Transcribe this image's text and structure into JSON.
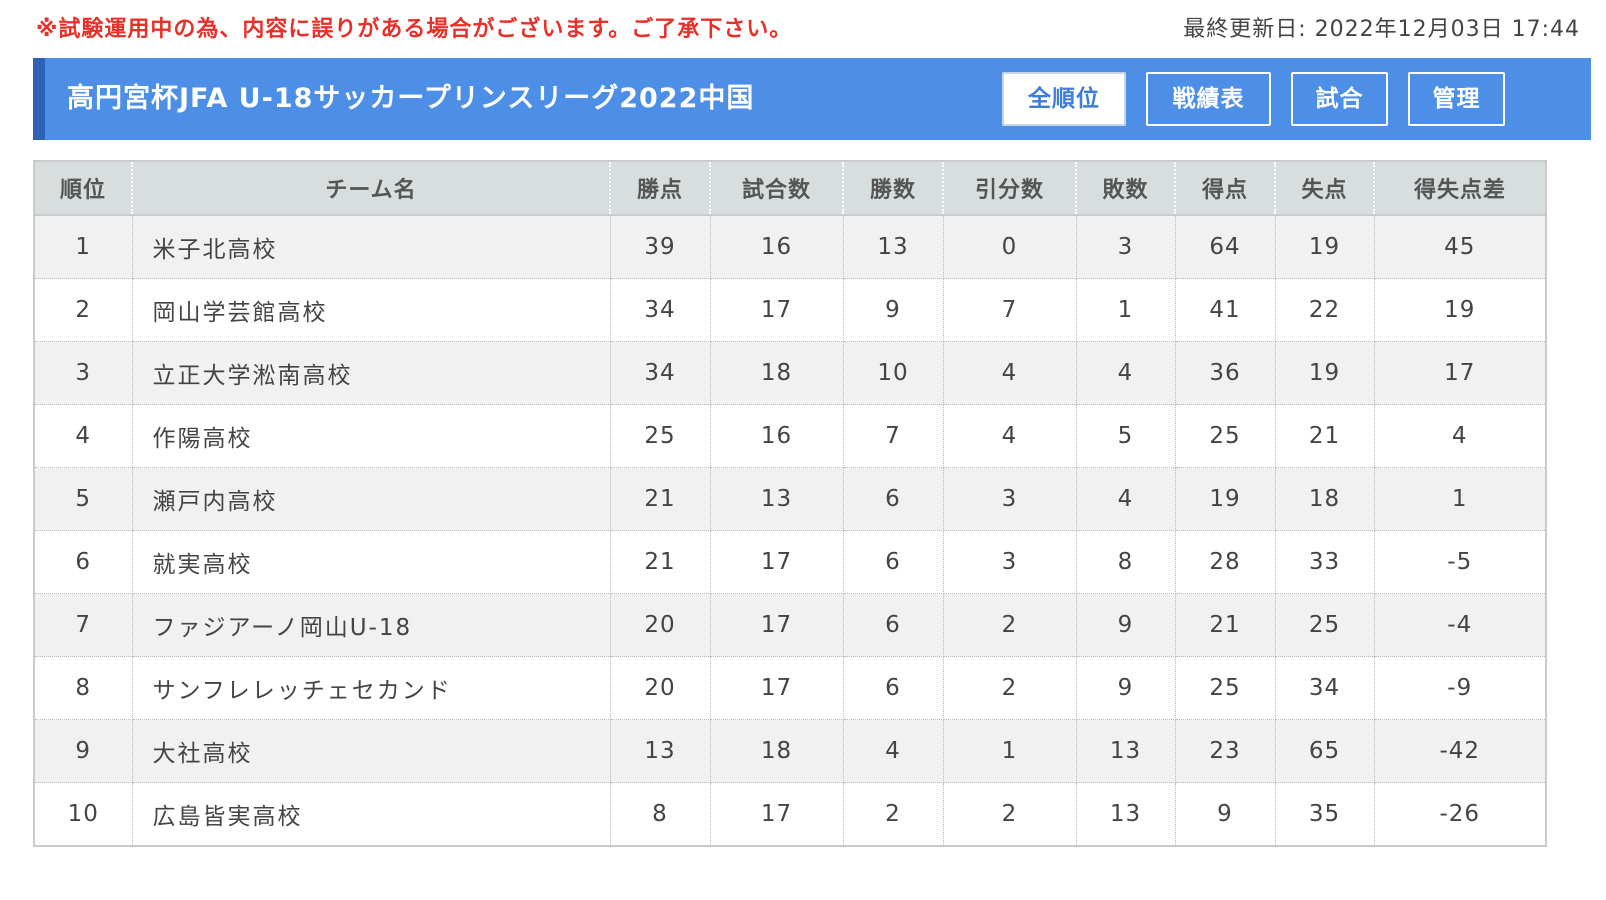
{
  "notice": "※試験運用中の為、内容に誤りがある場合がございます。ご了承下さい。",
  "updated": "最終更新日: 2022年12月03日 17:44",
  "header": {
    "title": "高円宮杯JFA U-18サッカープリンスリーグ2022中国",
    "nav": [
      "全順位",
      "戦績表",
      "試合",
      "管理"
    ],
    "active_nav": "全順位"
  },
  "colors": {
    "notice": "#e8302a",
    "header_bg": "#4d8fe6",
    "header_accent": "#2d62b6"
  },
  "table": {
    "headers": [
      "順位",
      "チーム名",
      "勝点",
      "試合数",
      "勝数",
      "引分数",
      "敗数",
      "得点",
      "失点",
      "得失点差"
    ],
    "rows": [
      [
        "1",
        "米子北高校",
        "39",
        "16",
        "13",
        "0",
        "3",
        "64",
        "19",
        "45"
      ],
      [
        "2",
        "岡山学芸館高校",
        "34",
        "17",
        "9",
        "7",
        "1",
        "41",
        "22",
        "19"
      ],
      [
        "3",
        "立正大学淞南高校",
        "34",
        "18",
        "10",
        "4",
        "4",
        "36",
        "19",
        "17"
      ],
      [
        "4",
        "作陽高校",
        "25",
        "16",
        "7",
        "4",
        "5",
        "25",
        "21",
        "4"
      ],
      [
        "5",
        "瀬戸内高校",
        "21",
        "13",
        "6",
        "3",
        "4",
        "19",
        "18",
        "1"
      ],
      [
        "6",
        "就実高校",
        "21",
        "17",
        "6",
        "3",
        "8",
        "28",
        "33",
        "-5"
      ],
      [
        "7",
        "ファジアーノ岡山U-18",
        "20",
        "17",
        "6",
        "2",
        "9",
        "21",
        "25",
        "-4"
      ],
      [
        "8",
        "サンフレレッチェセカンド",
        "20",
        "17",
        "6",
        "2",
        "9",
        "25",
        "34",
        "-9"
      ],
      [
        "9",
        "大社高校",
        "13",
        "18",
        "4",
        "1",
        "13",
        "23",
        "65",
        "-42"
      ],
      [
        "10",
        "広島皆実高校",
        "8",
        "17",
        "2",
        "2",
        "13",
        "9",
        "35",
        "-26"
      ]
    ]
  }
}
